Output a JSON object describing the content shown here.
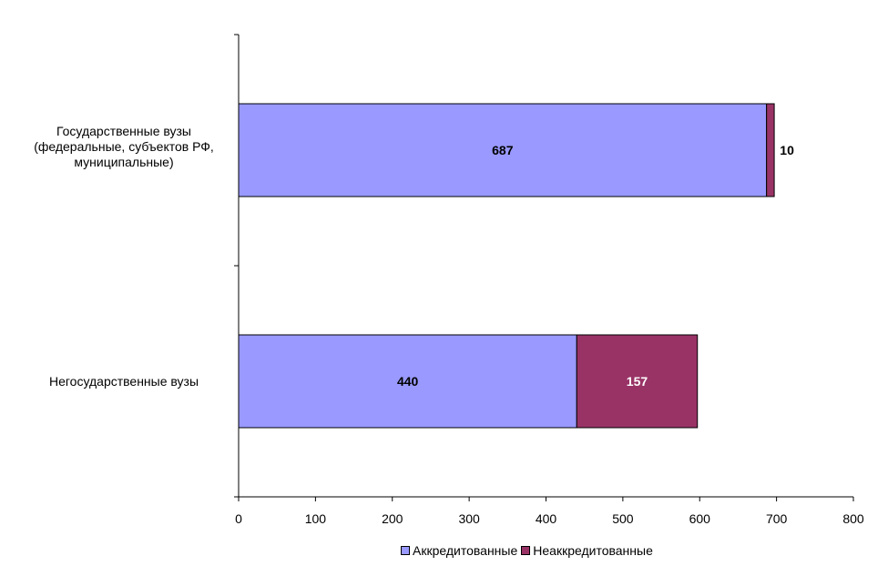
{
  "chart_data": {
    "type": "bar",
    "orientation": "horizontal",
    "stacked": true,
    "categories": [
      "Государственные вузы (федеральные, субъектов РФ, муниципальные)",
      "Негосударственные вузы"
    ],
    "category_lines": [
      [
        "Государственные вузы",
        "(федеральные, субъектов РФ,",
        "муниципальные)"
      ],
      [
        "Негосударственные вузы"
      ]
    ],
    "series": [
      {
        "name": "Аккредитованные",
        "values": [
          687,
          440
        ],
        "color": "#9999ff"
      },
      {
        "name": "Неаккредитованные",
        "values": [
          10,
          157
        ],
        "color": "#993366"
      }
    ],
    "data_labels": [
      [
        "687",
        "440"
      ],
      [
        "10",
        "157"
      ]
    ],
    "data_label_colors": [
      "#000000",
      "#ffffff"
    ],
    "xlim": [
      0,
      800
    ],
    "xticks": [
      0,
      100,
      200,
      300,
      400,
      500,
      600,
      700,
      800
    ],
    "xlabel": "",
    "ylabel": "",
    "title": "",
    "grid": false,
    "legend_position": "bottom"
  }
}
